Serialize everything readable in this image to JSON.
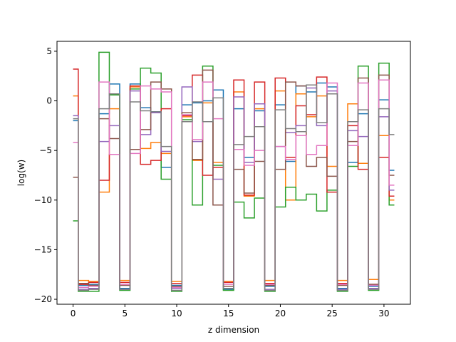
{
  "chart_data": {
    "type": "line",
    "drawstyle": "steps-mid",
    "xlabel": "z dimension",
    "ylabel": "log(w)",
    "xlim": [
      -1.55,
      32.55
    ],
    "ylim": [
      -20.5,
      6.0
    ],
    "xticks": [
      0,
      5,
      10,
      15,
      20,
      25,
      30
    ],
    "yticks": [
      5,
      0,
      -5,
      -10,
      -15,
      -20
    ],
    "grid": false,
    "legend": "none",
    "x": [
      0,
      1,
      2,
      3,
      4,
      5,
      6,
      7,
      8,
      9,
      10,
      11,
      12,
      13,
      14,
      15,
      16,
      17,
      18,
      19,
      20,
      21,
      22,
      23,
      24,
      25,
      26,
      27,
      28,
      29,
      30,
      31
    ],
    "series": [
      {
        "color": "#1f77b4",
        "values": [
          -2.0,
          -18.6,
          -18.5,
          -1.3,
          1.7,
          -18.9,
          1.7,
          -0.7,
          -1.1,
          -6.7,
          -18.6,
          -0.4,
          -0.2,
          0.0,
          1.1,
          -19.0,
          -0.8,
          -5.7,
          -1.0,
          -18.7,
          -0.4,
          -6.1,
          1.5,
          0.9,
          1.8,
          1.4,
          -18.9,
          -6.2,
          -1.3,
          -18.7,
          0.1,
          -7.0
        ]
      },
      {
        "color": "#ff7f0e",
        "values": [
          0.5,
          -18.1,
          -18.2,
          -9.2,
          -0.8,
          -18.1,
          1.4,
          -4.8,
          -4.2,
          -5.3,
          -18.2,
          -1.6,
          -6.0,
          -0.2,
          -6.2,
          -18.2,
          0.9,
          -9.6,
          -0.8,
          -18.1,
          1.0,
          -10.0,
          0.7,
          -1.6,
          0.5,
          -6.6,
          -18.1,
          -0.3,
          -6.3,
          -18.0,
          -3.5,
          -10.0
        ]
      },
      {
        "color": "#2ca02c",
        "values": [
          -12.1,
          -19.2,
          -19.2,
          4.9,
          0.6,
          -19.1,
          1.2,
          3.3,
          2.8,
          -7.9,
          -19.2,
          -1.9,
          -10.5,
          3.5,
          -6.5,
          -19.1,
          -10.2,
          -11.8,
          -9.8,
          -19.2,
          -10.7,
          -8.7,
          -10.0,
          -9.4,
          -11.1,
          -9.0,
          -19.2,
          -6.6,
          3.5,
          -19.1,
          3.8,
          -10.5
        ]
      },
      {
        "color": "#d62728",
        "values": [
          3.2,
          -18.5,
          -18.3,
          -8.0,
          -5.4,
          -18.3,
          1.5,
          -6.4,
          -6.0,
          -0.8,
          -18.4,
          -1.5,
          2.6,
          -7.5,
          -6.7,
          -18.3,
          2.1,
          -9.5,
          1.9,
          -18.4,
          2.3,
          -5.7,
          -0.5,
          -1.4,
          2.4,
          -9.2,
          -18.4,
          -2.5,
          -6.9,
          -18.5,
          -5.7,
          -9.6
        ]
      },
      {
        "color": "#9467bd",
        "values": [
          -1.5,
          -19.0,
          -18.9,
          -4.1,
          -2.5,
          -19.0,
          1.0,
          -3.4,
          -1.2,
          -5.1,
          -18.9,
          1.4,
          -4.1,
          -2.1,
          -7.9,
          -18.9,
          0.4,
          -6.2,
          -0.3,
          -19.0,
          -4.6,
          -3.2,
          -2.5,
          1.3,
          -2.5,
          1.0,
          -19.0,
          -3.0,
          -3.6,
          -18.9,
          -1.6,
          -9.0
        ]
      },
      {
        "color": "#8c564b",
        "values": [
          -7.7,
          -18.4,
          -18.6,
          -1.8,
          -3.8,
          -18.6,
          -4.9,
          -2.9,
          1.9,
          1.2,
          -18.7,
          -1.2,
          -5.9,
          3.1,
          -10.5,
          -18.7,
          -6.9,
          -9.3,
          -6.1,
          -18.6,
          -6.9,
          1.9,
          1.5,
          -6.6,
          -5.7,
          -7.6,
          -18.6,
          -4.1,
          2.3,
          -18.5,
          2.6,
          -7.5
        ]
      },
      {
        "color": "#e377c2",
        "values": [
          -4.2,
          -18.8,
          -18.7,
          1.9,
          -5.4,
          -18.5,
          -5.3,
          1.5,
          1.2,
          0.9,
          -18.8,
          -1.4,
          -3.9,
          1.9,
          -1.8,
          -18.5,
          -4.9,
          -6.5,
          -5.0,
          -18.5,
          -4.6,
          -5.9,
          -3.5,
          -5.4,
          -4.5,
          1.8,
          -18.5,
          -4.5,
          1.8,
          -18.6,
          2.1,
          -8.5
        ]
      },
      {
        "color": "#7f7f7f",
        "values": [
          -1.8,
          -19.1,
          -19.0,
          -0.8,
          0.7,
          -19.0,
          -0.1,
          -1.0,
          -1.1,
          -4.6,
          -19.1,
          -2.1,
          -0.1,
          -2.1,
          0.3,
          -18.9,
          -4.4,
          -3.6,
          -2.6,
          -19.1,
          -0.9,
          -2.8,
          -3.1,
          1.6,
          -2.2,
          0.7,
          -19.1,
          -2.1,
          -0.9,
          -19.0,
          -0.8,
          -3.4
        ]
      }
    ]
  }
}
